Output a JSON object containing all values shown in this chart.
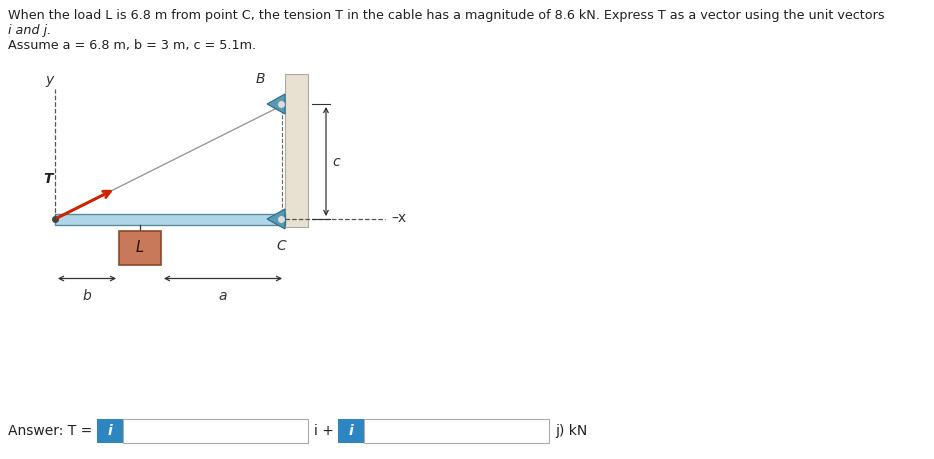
{
  "title_line1": "When the load L is 6.8 m from point C, the tension T in the cable has a magnitude of 8.6 kN. Express T as a vector using the unit vectors",
  "title_line2": "i and j.",
  "subtitle": "Assume a = 6.8 m, b = 3 m, c = 5.1m.",
  "answer_prefix": "Answer: T = (",
  "answer_middle": "i +",
  "answer_suffix": "j) kN",
  "fig_width": 9.34,
  "fig_height": 4.59,
  "bg_color": "#ffffff",
  "text_color": "#231f20",
  "blue_text_color": "#1a5276",
  "blue_box_color": "#2e86c1",
  "input_box_border": "#aaaaaa",
  "beam_color": "#aed6e8",
  "beam_edge": "#5a8a9a",
  "cable_color": "#999999",
  "tension_color": "#cc2200",
  "wall_color": "#e8e0d0",
  "wall_edge": "#aaaaaa",
  "pin_color": "#5a9ab5",
  "pin_dark": "#2a6a85",
  "load_face": "#c8795a",
  "load_edge": "#8a4a2a",
  "dim_color": "#333333",
  "label_it_color": "#333333"
}
